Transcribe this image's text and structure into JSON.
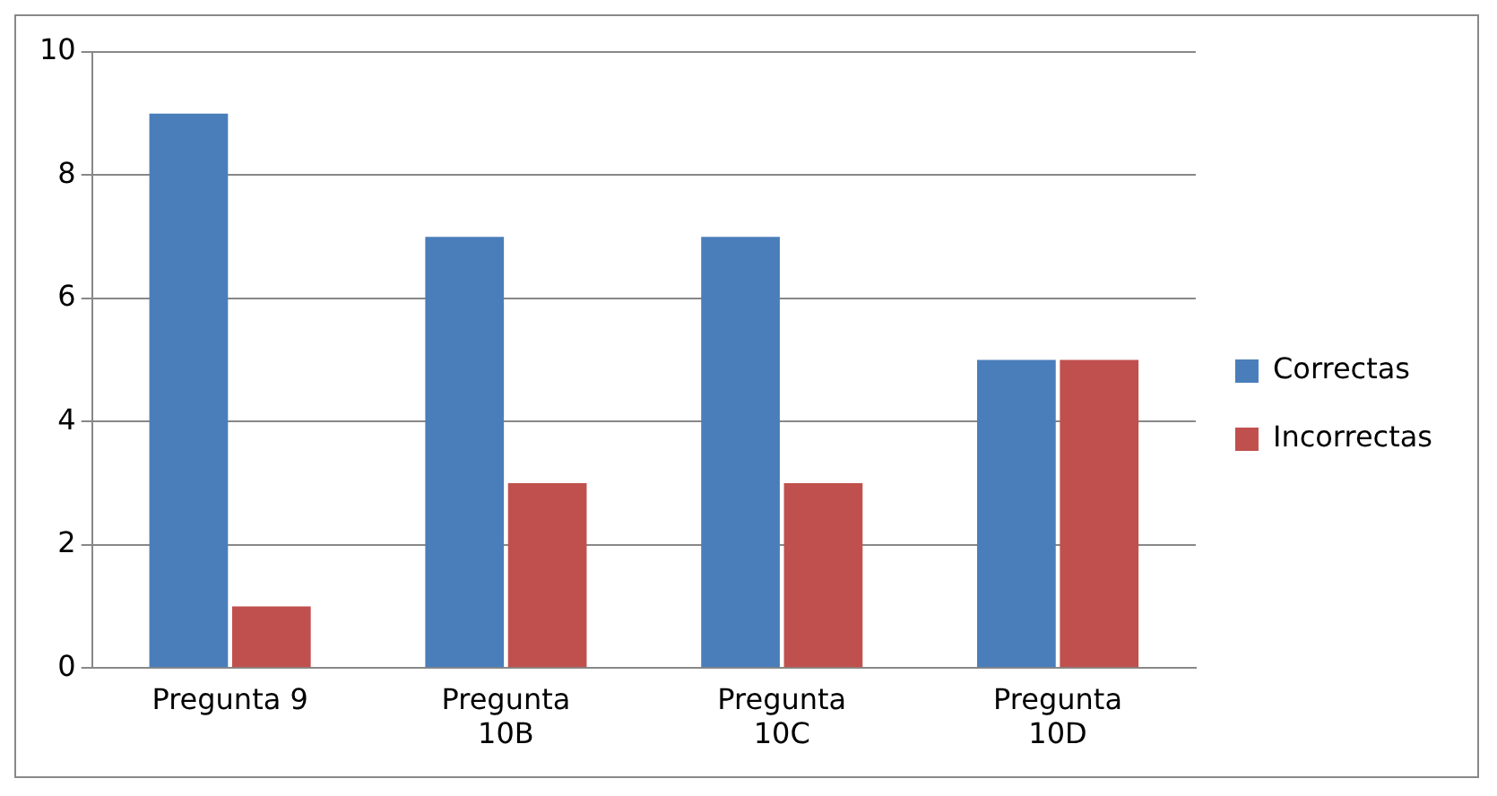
{
  "chart_data": {
    "type": "bar",
    "categories": [
      "Pregunta 9",
      "Pregunta 10B",
      "Pregunta 10C",
      "Pregunta 10D"
    ],
    "series": [
      {
        "name": "Correctas",
        "color": "#4a7ebb",
        "values": [
          9,
          7,
          7,
          5
        ]
      },
      {
        "name": "Incorrectas",
        "color": "#c0504d",
        "values": [
          1,
          3,
          3,
          5
        ]
      }
    ],
    "ylim": [
      0,
      10
    ],
    "yticks": [
      0,
      2,
      4,
      6,
      8,
      10
    ],
    "grid": "y",
    "legend": "right"
  }
}
